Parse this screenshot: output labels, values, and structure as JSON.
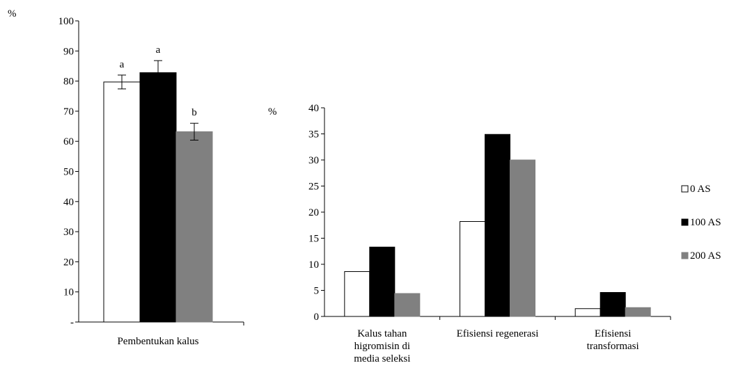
{
  "chart_data": [
    {
      "type": "bar",
      "ylabel": "%",
      "ylim": [
        0,
        100
      ],
      "ytick_labels": [
        "-",
        "10",
        "20",
        "30",
        "40",
        "50",
        "60",
        "70",
        "80",
        "90",
        "100"
      ],
      "categories": [
        "Pembentukan kalus"
      ],
      "series": [
        {
          "name": "0 AS",
          "color": "#ffffff",
          "values": [
            79.7
          ],
          "error": [
            2.3
          ],
          "letter": "a"
        },
        {
          "name": "100 AS",
          "color": "#000000",
          "values": [
            82.8
          ],
          "error": [
            4.0
          ],
          "letter": "a"
        },
        {
          "name": "200 AS",
          "color": "#808080",
          "values": [
            63.2
          ],
          "error": [
            2.8
          ],
          "letter": "b"
        }
      ],
      "grid": false
    },
    {
      "type": "bar",
      "ylabel": "%",
      "ylim": [
        0,
        40
      ],
      "ytick_labels": [
        "0",
        "5",
        "10",
        "15",
        "20",
        "25",
        "30",
        "35",
        "40"
      ],
      "categories": [
        [
          "Kalus tahan",
          "higromisin di",
          "media seleksi"
        ],
        [
          "Efisiensi regenerasi"
        ],
        [
          "Efisiensi",
          "transformasi"
        ]
      ],
      "series": [
        {
          "name": "0 AS",
          "color": "#ffffff",
          "values": [
            8.6,
            18.2,
            1.5
          ]
        },
        {
          "name": "100 AS",
          "color": "#000000",
          "values": [
            13.3,
            34.9,
            4.6
          ]
        },
        {
          "name": "200 AS",
          "color": "#808080",
          "values": [
            4.4,
            30.0,
            1.7
          ]
        }
      ],
      "legend": {
        "position": "right",
        "entries": [
          "0 AS",
          "100 AS",
          "200 AS"
        ]
      },
      "grid": false
    }
  ]
}
